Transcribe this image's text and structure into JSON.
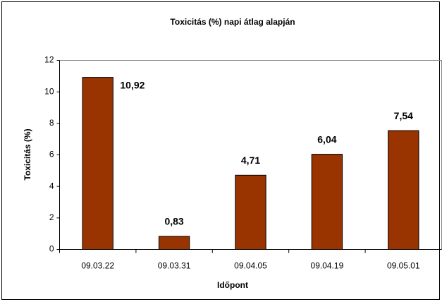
{
  "chart_data": {
    "type": "bar",
    "title": "Toxicitás (%) napi átlag alapján",
    "x_label": "Időpont",
    "y_label": "Toxicitás (%)",
    "categories": [
      "09.03.22",
      "09.03.31",
      "09.04.05",
      "09.04.19",
      "09.05.01"
    ],
    "values": [
      10.92,
      0.83,
      4.71,
      6.04,
      7.54
    ],
    "value_labels": [
      "10,92",
      "0,83",
      "4,71",
      "6,04",
      "7,54"
    ],
    "color": "#993300",
    "ylim": [
      0,
      12
    ],
    "yticks": [
      0,
      2,
      4,
      6,
      8,
      10,
      12
    ],
    "grid": false
  }
}
